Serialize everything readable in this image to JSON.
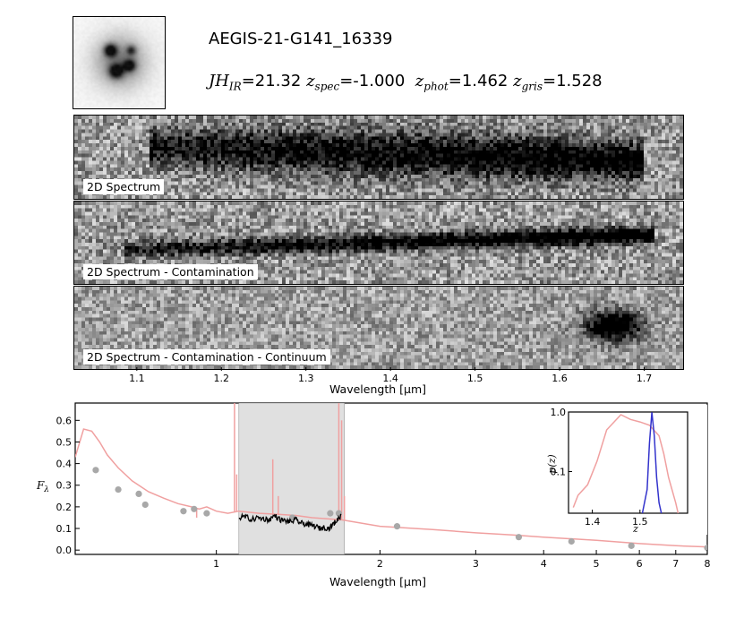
{
  "object_id": "AEGIS-21-G141_16339",
  "mag_line": {
    "jh_label": "JH",
    "jh_sub": "IR",
    "jh_value": "=21.32",
    "zspec_label": "z",
    "zspec_sub": "spec",
    "zspec_value": "=-1.000",
    "zphot_label": "z",
    "zphot_sub": "phot",
    "zphot_value": "=1.462",
    "zgris_label": "z",
    "zgris_sub": "gris",
    "zgris_value": "=1.528"
  },
  "panels": [
    {
      "label": "2D Spectrum",
      "kind": "full"
    },
    {
      "label": "2D Spectrum - Contamination",
      "kind": "clean"
    },
    {
      "label": "2D Spectrum - Contamination - Continuum",
      "kind": "resid"
    }
  ],
  "chart_data": [
    {
      "type": "image-axis",
      "xlabel": "Wavelength [µm]",
      "xlim": [
        1.025,
        1.745
      ],
      "ticks": [
        1.1,
        1.2,
        1.3,
        1.4,
        1.5,
        1.6,
        1.7
      ],
      "tick_labels": [
        "1.1",
        "1.2",
        "1.3",
        "1.4",
        "1.5",
        "1.6",
        "1.7"
      ]
    },
    {
      "type": "line",
      "xscale": "log",
      "xlim": [
        0.55,
        8.0
      ],
      "ylim": [
        -0.02,
        0.68
      ],
      "xlabel": "Wavelength [µm]",
      "ylabel": "F_λ",
      "xticks": [
        1,
        2,
        3,
        4,
        5,
        6,
        7,
        8
      ],
      "xtick_labels": [
        "1",
        "2",
        "3",
        "4",
        "5",
        "6",
        "7",
        "8"
      ],
      "yticks": [
        0.0,
        0.1,
        0.2,
        0.3,
        0.4,
        0.5,
        0.6
      ],
      "ytick_labels": [
        "0.0",
        "0.1",
        "0.2",
        "0.3",
        "0.4",
        "0.5",
        "0.6"
      ],
      "shaded_band": [
        1.1,
        1.72
      ],
      "colors": {
        "sed": "#f0a0a0",
        "photometry": "#a8a8a8",
        "spectrum": "#000000",
        "band": "#e0e0e0"
      },
      "sed_model": {
        "x": [
          0.55,
          0.57,
          0.59,
          0.61,
          0.63,
          0.66,
          0.7,
          0.75,
          0.8,
          0.85,
          0.9,
          0.93,
          0.96,
          1.0,
          1.05,
          1.1,
          1.2,
          1.3,
          1.4,
          1.5,
          1.6,
          1.7,
          2.0,
          2.5,
          3.0,
          3.5,
          4.0,
          5.0,
          6.0,
          7.0,
          8.0
        ],
        "y": [
          0.43,
          0.56,
          0.55,
          0.5,
          0.44,
          0.38,
          0.32,
          0.27,
          0.24,
          0.215,
          0.2,
          0.19,
          0.2,
          0.18,
          0.17,
          0.18,
          0.17,
          0.165,
          0.16,
          0.15,
          0.145,
          0.14,
          0.11,
          0.095,
          0.08,
          0.07,
          0.06,
          0.045,
          0.03,
          0.02,
          0.015
        ]
      },
      "sed_spikes": [
        {
          "x": 0.92,
          "top": 0.15
        },
        {
          "x": 1.08,
          "top": 0.68
        },
        {
          "x": 1.09,
          "top": 0.35
        },
        {
          "x": 1.27,
          "top": 0.42
        },
        {
          "x": 1.3,
          "top": 0.25
        },
        {
          "x": 1.68,
          "top": 0.68
        },
        {
          "x": 1.7,
          "top": 0.6
        },
        {
          "x": 1.72,
          "top": 0.25
        }
      ],
      "photometry": {
        "x": [
          0.6,
          0.66,
          0.72,
          0.74,
          0.87,
          0.91,
          0.96,
          1.38,
          1.62,
          1.68,
          2.15,
          3.6,
          4.5,
          5.8,
          8.0
        ],
        "y": [
          0.37,
          0.28,
          0.26,
          0.21,
          0.18,
          0.19,
          0.17,
          0.15,
          0.17,
          0.17,
          0.11,
          0.06,
          0.04,
          0.02,
          0.01
        ]
      },
      "grism_spectrum": {
        "x": [
          1.1,
          1.13,
          1.16,
          1.19,
          1.22,
          1.25,
          1.28,
          1.31,
          1.34,
          1.37,
          1.4,
          1.43,
          1.46,
          1.49,
          1.52,
          1.55,
          1.58,
          1.61,
          1.64,
          1.67,
          1.7
        ],
        "y": [
          0.15,
          0.155,
          0.14,
          0.15,
          0.145,
          0.14,
          0.16,
          0.14,
          0.135,
          0.13,
          0.14,
          0.125,
          0.12,
          0.115,
          0.11,
          0.1,
          0.105,
          0.1,
          0.12,
          0.14,
          0.165
        ]
      }
    },
    {
      "type": "line",
      "yscale": "log",
      "xlim": [
        1.35,
        1.6
      ],
      "ylim": [
        0.02,
        1.0
      ],
      "xlabel": "z",
      "ylabel": "p(z)",
      "xticks": [
        1.4,
        1.5
      ],
      "xtick_labels": [
        "1.4",
        "1.5"
      ],
      "yticks": [
        0.1,
        1.0
      ],
      "ytick_labels": [
        "0.1",
        "1.0"
      ],
      "series": [
        {
          "color": "#f0a0a0",
          "x": [
            1.36,
            1.37,
            1.39,
            1.41,
            1.43,
            1.46,
            1.48,
            1.5,
            1.52,
            1.54,
            1.55,
            1.56,
            1.575,
            1.58
          ],
          "y": [
            0.025,
            0.04,
            0.06,
            0.15,
            0.5,
            0.9,
            0.75,
            0.68,
            0.6,
            0.4,
            0.2,
            0.08,
            0.03,
            0.02
          ]
        },
        {
          "color": "#3333cc",
          "x": [
            1.505,
            1.515,
            1.52,
            1.525,
            1.53,
            1.535,
            1.54,
            1.545
          ],
          "y": [
            0.02,
            0.05,
            0.3,
            0.99,
            0.4,
            0.08,
            0.03,
            0.02
          ]
        }
      ]
    }
  ]
}
